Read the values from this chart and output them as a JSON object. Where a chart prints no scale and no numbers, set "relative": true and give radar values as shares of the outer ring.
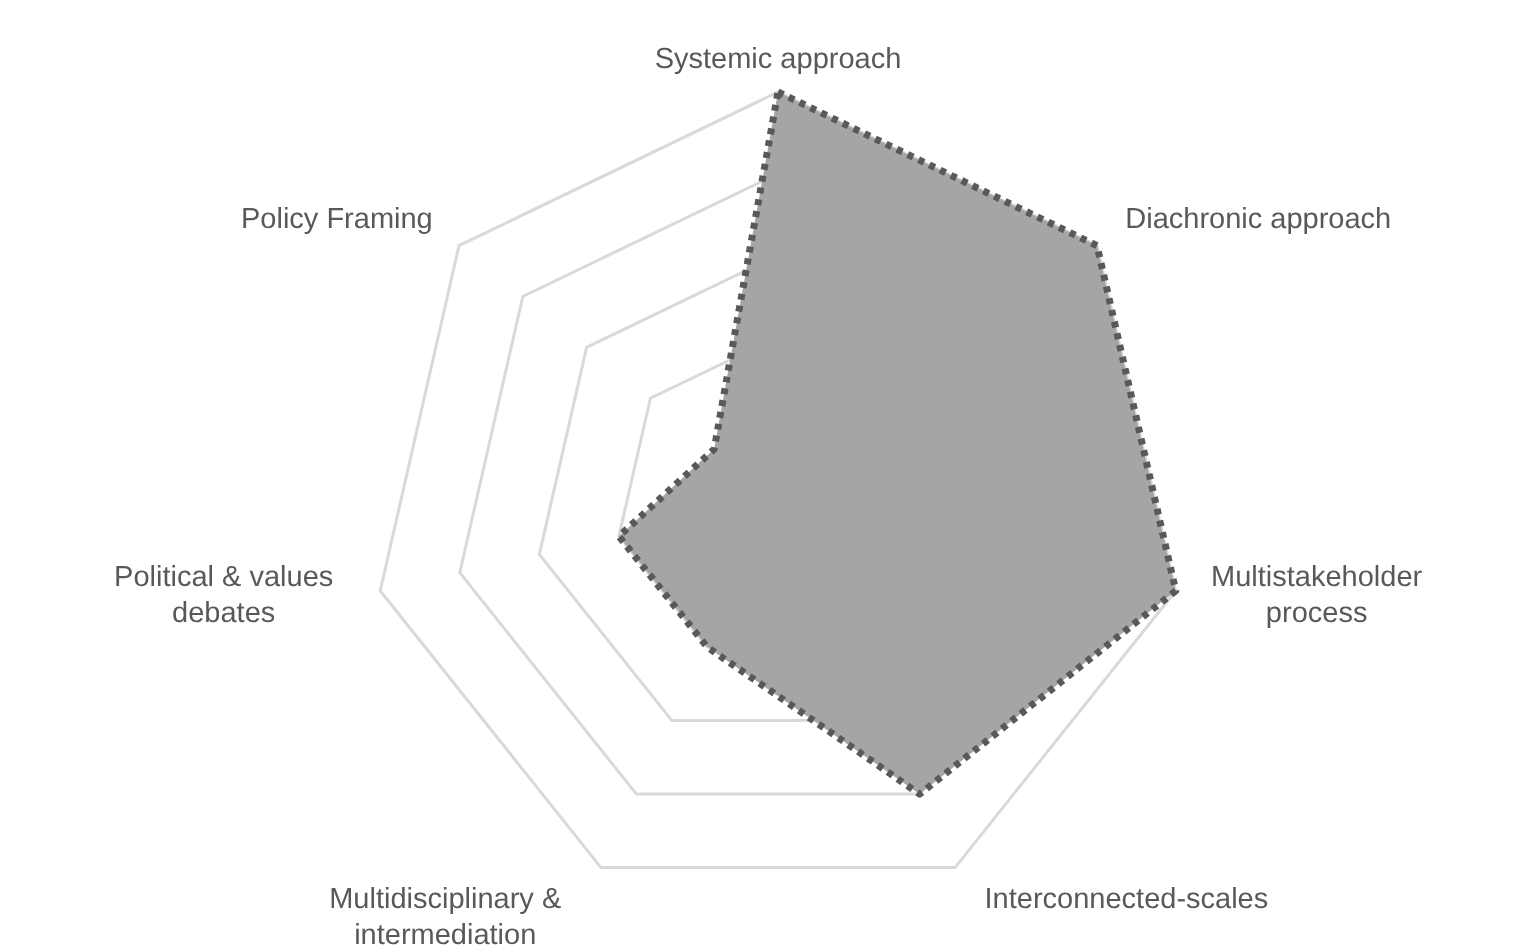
{
  "chart_data": {
    "type": "radar",
    "relative": true,
    "categories": [
      "Systemic approach",
      "Diachronic approach",
      "Multistakeholder\nprocess",
      "Interconnected-scales",
      "Multidisciplinary &\nintermediation",
      "Political & values\ndebates",
      "Policy Framing"
    ],
    "series": [
      {
        "color": "#a5a5a5",
        "values": [
          1,
          1,
          1,
          0.8,
          0.4,
          0.4,
          0.2
        ]
      }
    ],
    "line_style": "dotted",
    "marker": "none",
    "grid": true,
    "legend": false
  }
}
